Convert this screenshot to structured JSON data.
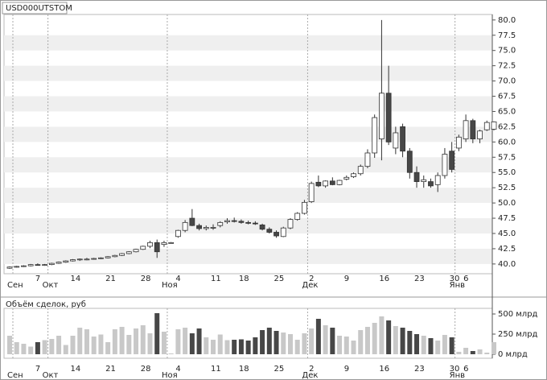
{
  "chart_data": [
    {
      "type": "candlestick",
      "title": "USD000UTSTOM",
      "categories": [
        null,
        null,
        null,
        null,
        "7",
        null,
        null,
        null,
        null,
        "14",
        null,
        null,
        null,
        null,
        "21",
        null,
        null,
        null,
        null,
        "28",
        null,
        null,
        null,
        null,
        "4",
        null,
        null,
        null,
        null,
        "11",
        null,
        null,
        null,
        "18",
        null,
        null,
        null,
        null,
        "25",
        null,
        null,
        null,
        null,
        "2",
        null,
        null,
        null,
        null,
        "9",
        null,
        null,
        null,
        null,
        "16",
        null,
        null,
        null,
        null,
        "23",
        null,
        null,
        null,
        null,
        "30",
        null,
        "6",
        null,
        null,
        null,
        null
      ],
      "months": [
        "Сен",
        null,
        null,
        null,
        null,
        "Окт",
        null,
        null,
        null,
        null,
        null,
        null,
        null,
        null,
        null,
        null,
        null,
        null,
        null,
        null,
        null,
        null,
        "Ноя",
        null,
        null,
        null,
        null,
        null,
        null,
        null,
        null,
        null,
        null,
        null,
        null,
        null,
        null,
        null,
        null,
        null,
        null,
        null,
        "Дек",
        null,
        null,
        null,
        null,
        null,
        null,
        null,
        null,
        null,
        null,
        null,
        null,
        null,
        null,
        null,
        null,
        null,
        null,
        null,
        null,
        "Янв",
        null,
        null,
        null,
        null,
        null,
        null
      ],
      "open": [
        39.3,
        39.5,
        39.6,
        39.7,
        39.9,
        39.8,
        39.9,
        40.1,
        40.3,
        40.5,
        40.7,
        40.8,
        40.8,
        40.9,
        41.0,
        41.2,
        41.4,
        41.7,
        42.0,
        42.4,
        42.9,
        43.5,
        43.2,
        43.5,
        44.5,
        45.5,
        47.5,
        46.3,
        45.8,
        46.0,
        46.3,
        46.9,
        47.1,
        47.0,
        46.8,
        46.7,
        46.4,
        45.7,
        45.2,
        44.5,
        45.9,
        47.3,
        48.3,
        50.2,
        53.4,
        52.8,
        53.6,
        53.0,
        53.9,
        54.3,
        54.8,
        56.0,
        58.2,
        60.5,
        68.0,
        59.0,
        62.5,
        58.5,
        55.0,
        53.5,
        53.5,
        53.0,
        54.5,
        58.5,
        59.0,
        60.5,
        63.5,
        60.5,
        62.0,
        62.1
      ],
      "high": [
        39.6,
        39.7,
        39.8,
        40.0,
        40.1,
        40.0,
        40.2,
        40.4,
        40.6,
        40.8,
        40.9,
        41.0,
        41.0,
        41.1,
        41.3,
        41.5,
        41.8,
        42.1,
        42.5,
        43.0,
        43.8,
        44.0,
        43.8,
        43.6,
        45.6,
        47.2,
        49.0,
        46.6,
        46.3,
        46.5,
        47.0,
        47.5,
        47.6,
        47.3,
        47.1,
        47.0,
        46.6,
        46.0,
        45.5,
        46.1,
        47.5,
        48.5,
        50.5,
        53.5,
        54.5,
        53.7,
        54.2,
        53.8,
        54.5,
        55.0,
        56.3,
        58.8,
        64.5,
        80.0,
        72.5,
        62.5,
        63.0,
        59.0,
        56.0,
        54.5,
        54.0,
        55.0,
        59.0,
        60.0,
        61.2,
        64.5,
        63.8,
        62.0,
        63.5,
        63.4
      ],
      "low": [
        39.2,
        39.4,
        39.5,
        39.6,
        39.8,
        39.7,
        39.8,
        40.0,
        40.2,
        40.4,
        40.5,
        40.6,
        40.7,
        40.8,
        40.9,
        41.1,
        41.3,
        41.6,
        41.9,
        42.3,
        42.6,
        41.0,
        42.8,
        43.4,
        44.3,
        45.2,
        46.2,
        45.5,
        45.5,
        45.6,
        46.0,
        46.6,
        46.8,
        46.6,
        46.5,
        46.4,
        45.5,
        45.0,
        44.3,
        44.4,
        45.7,
        47.1,
        48.1,
        50.0,
        52.6,
        52.5,
        52.9,
        52.9,
        53.7,
        54.1,
        54.5,
        55.7,
        57.4,
        57.0,
        59.5,
        58.0,
        57.5,
        54.0,
        52.5,
        52.5,
        52.5,
        51.8,
        54.0,
        55.0,
        58.5,
        60.0,
        59.8,
        59.8,
        61.8,
        61.9
      ],
      "close": [
        39.5,
        39.6,
        39.7,
        39.9,
        39.8,
        39.9,
        40.1,
        40.3,
        40.5,
        40.7,
        40.8,
        40.8,
        40.9,
        41.0,
        41.2,
        41.4,
        41.7,
        42.0,
        42.4,
        42.9,
        43.5,
        42.0,
        43.5,
        43.5,
        45.5,
        46.8,
        46.3,
        45.8,
        46.0,
        46.0,
        46.8,
        47.1,
        47.0,
        46.8,
        46.7,
        46.6,
        45.7,
        45.2,
        44.6,
        45.9,
        47.3,
        48.3,
        50.1,
        53.2,
        52.8,
        53.6,
        53.0,
        53.7,
        54.2,
        54.8,
        56.0,
        58.2,
        64.0,
        68.0,
        60.0,
        61.5,
        58.5,
        55.0,
        53.5,
        53.8,
        52.8,
        54.5,
        58.0,
        55.5,
        60.8,
        63.5,
        60.5,
        61.8,
        63.2,
        63.3
      ],
      "ylim": [
        38.4,
        80.9
      ],
      "yticks": [
        {
          "value": 40,
          "label": "40.0"
        },
        {
          "value": 42.5,
          "label": "42.5"
        },
        {
          "value": 45,
          "label": "45.0"
        },
        {
          "value": 47.5,
          "label": "47.5"
        },
        {
          "value": 50,
          "label": "50.0"
        },
        {
          "value": 52.5,
          "label": "52.5"
        },
        {
          "value": 55,
          "label": "55.0"
        },
        {
          "value": 57.5,
          "label": "57.5"
        },
        {
          "value": 60,
          "label": "60.0"
        },
        {
          "value": 62.5,
          "label": "62.5"
        },
        {
          "value": 65,
          "label": "65.0"
        },
        {
          "value": 67.5,
          "label": "67.5"
        },
        {
          "value": 70,
          "label": "70.0"
        },
        {
          "value": 72.5,
          "label": "72.5"
        },
        {
          "value": 75,
          "label": "75.0"
        },
        {
          "value": 77.5,
          "label": "77.5"
        },
        {
          "value": 80,
          "label": "80.0"
        }
      ],
      "up_color": "#ffffff",
      "down_color": "#474747",
      "grid": true
    },
    {
      "type": "bar",
      "title": "Объём сделок, руб",
      "values": [
        230,
        150,
        130,
        95,
        150,
        175,
        190,
        230,
        115,
        230,
        330,
        310,
        220,
        245,
        150,
        310,
        340,
        240,
        320,
        360,
        260,
        510,
        280,
        10,
        310,
        330,
        260,
        320,
        210,
        180,
        245,
        175,
        180,
        185,
        170,
        210,
        300,
        330,
        290,
        270,
        250,
        180,
        260,
        320,
        440,
        360,
        330,
        230,
        220,
        170,
        300,
        340,
        390,
        470,
        420,
        350,
        330,
        290,
        250,
        230,
        200,
        170,
        240,
        210,
        30,
        80,
        40,
        60,
        20,
        150
      ],
      "ylim": [
        -50,
        570
      ],
      "yticks": [
        {
          "value": 0,
          "label": "0 млрд"
        },
        {
          "value": 250,
          "label": "250 млрд"
        },
        {
          "value": 500,
          "label": "500 млрд"
        }
      ],
      "up_color": "#c8c8c8",
      "down_color": "#474747"
    }
  ]
}
